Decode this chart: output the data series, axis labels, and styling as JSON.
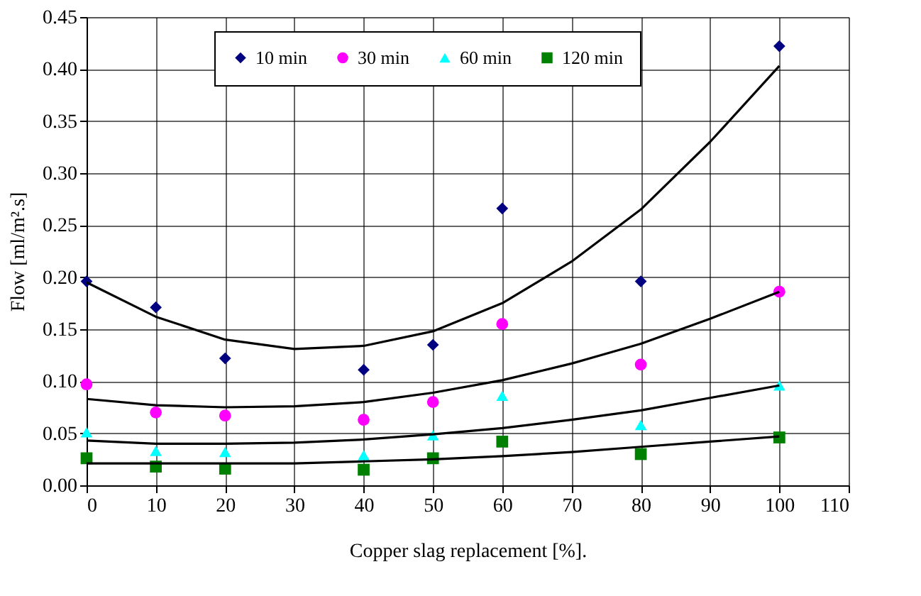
{
  "chart_data": {
    "type": "scatter",
    "xlabel": "Copper slag replacement [%].",
    "ylabel": "Flow [ml/m².s]",
    "x": [
      0,
      10,
      20,
      40,
      50,
      60,
      80,
      100
    ],
    "xlim": [
      0,
      110
    ],
    "xticks": [
      0,
      10,
      20,
      30,
      40,
      50,
      60,
      70,
      80,
      90,
      100,
      110
    ],
    "ylim": [
      0,
      0.45
    ],
    "yticks": [
      {
        "value": 0,
        "label": "0.00"
      },
      0.05,
      {
        "value": 0.1,
        "label": "0.10"
      },
      0.15,
      {
        "value": 0.2,
        "label": "0.20"
      },
      0.25,
      {
        "value": 0.3,
        "label": "0.30"
      },
      0.35,
      {
        "value": 0.4,
        "label": "0.40"
      },
      0.45
    ],
    "grid": true,
    "legend": "top",
    "series": [
      {
        "name": "10 min",
        "color": "#000080",
        "marker": "diamond",
        "values": [
          0.196,
          0.171,
          0.122,
          0.111,
          0.135,
          0.266,
          0.196,
          0.422
        ]
      },
      {
        "name": "30 min",
        "color": "#ff00ff",
        "marker": "circle",
        "values": [
          0.097,
          0.07,
          0.067,
          0.063,
          0.08,
          0.155,
          0.116,
          0.186
        ]
      },
      {
        "name": "60 min",
        "color": "#00ffff",
        "marker": "triangle",
        "values": [
          0.051,
          0.033,
          0.032,
          0.029,
          0.048,
          0.086,
          0.058,
          0.096
        ]
      },
      {
        "name": "120 min",
        "color": "#008000",
        "marker": "square",
        "values": [
          0.026,
          0.018,
          0.016,
          0.015,
          0.026,
          0.042,
          0.03,
          0.046
        ]
      },
      {
        "type": "line",
        "color": "#000000",
        "marker": "none",
        "x": [
          0,
          10,
          20,
          30,
          40,
          50,
          60,
          70,
          80,
          90,
          100
        ],
        "values": [
          0.195,
          0.162,
          0.14,
          0.131,
          0.134,
          0.148,
          0.175,
          0.215,
          0.265,
          0.33,
          0.403
        ]
      },
      {
        "type": "line",
        "color": "#000000",
        "marker": "none",
        "x": [
          0,
          10,
          20,
          30,
          40,
          50,
          60,
          70,
          80,
          90,
          100
        ],
        "values": [
          0.083,
          0.077,
          0.075,
          0.076,
          0.08,
          0.089,
          0.101,
          0.117,
          0.136,
          0.16,
          0.186
        ]
      },
      {
        "type": "line",
        "color": "#000000",
        "marker": "none",
        "x": [
          0,
          10,
          20,
          30,
          40,
          50,
          60,
          70,
          80,
          90,
          100
        ],
        "values": [
          0.043,
          0.04,
          0.04,
          0.041,
          0.044,
          0.049,
          0.055,
          0.063,
          0.072,
          0.084,
          0.096
        ]
      },
      {
        "type": "line",
        "color": "#000000",
        "marker": "none",
        "x": [
          0,
          10,
          20,
          30,
          40,
          50,
          60,
          70,
          80,
          90,
          100
        ],
        "values": [
          0.021,
          0.021,
          0.021,
          0.021,
          0.023,
          0.025,
          0.028,
          0.032,
          0.037,
          0.042,
          0.047
        ]
      }
    ]
  }
}
